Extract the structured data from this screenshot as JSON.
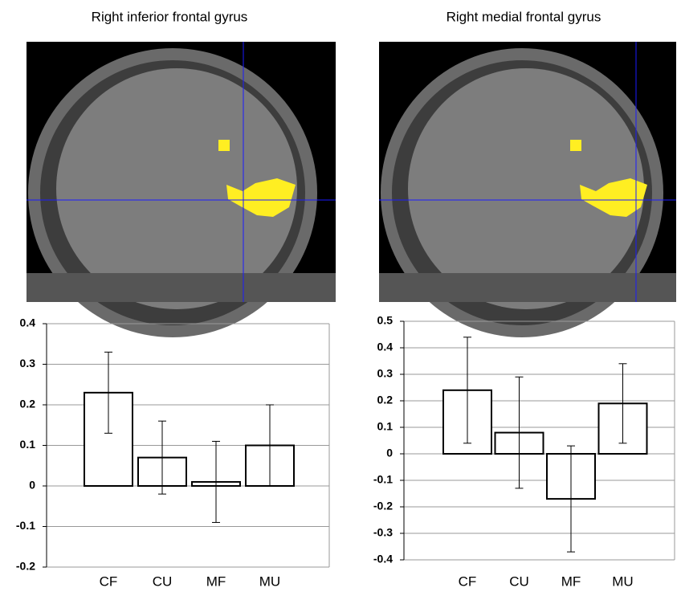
{
  "chart_data": [
    {
      "type": "bar",
      "title": "Right inferior frontal gyrus",
      "categories": [
        "CF",
        "CU",
        "MF",
        "MU"
      ],
      "values": [
        0.23,
        0.07,
        0.01,
        0.1
      ],
      "errors": [
        0.1,
        0.09,
        0.1,
        0.1
      ],
      "color": "#ffffff",
      "ylim": [
        -0.2,
        0.4
      ],
      "yticks": [
        -0.2,
        -0.1,
        0,
        0.1,
        0.2,
        0.3,
        0.4
      ],
      "grid": true
    },
    {
      "type": "bar",
      "title": "Right medial frontal gyrus",
      "categories": [
        "CF",
        "CU",
        "MF",
        "MU"
      ],
      "values": [
        0.24,
        0.08,
        -0.17,
        0.19
      ],
      "errors": [
        0.2,
        0.21,
        0.2,
        0.15
      ],
      "color": "#ffffff",
      "ylim": [
        -0.4,
        0.5
      ],
      "yticks": [
        -0.4,
        -0.3,
        -0.2,
        -0.1,
        0,
        0.1,
        0.2,
        0.3,
        0.4,
        0.5
      ],
      "grid": true
    }
  ]
}
